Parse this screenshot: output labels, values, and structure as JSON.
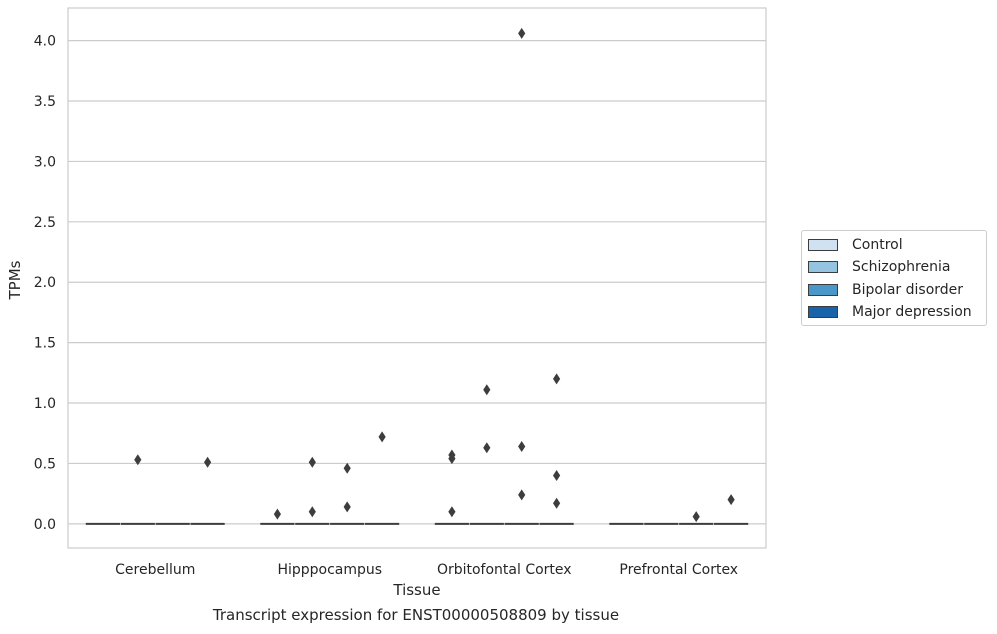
{
  "chart_data": {
    "type": "box",
    "title": "",
    "caption": "Transcript expression for ENST00000508809 by tissue",
    "xlabel": "Tissue",
    "ylabel": "TPMs",
    "ylim": [
      -0.2,
      4.27
    ],
    "yticks": [
      "0.0",
      "0.5",
      "1.0",
      "1.5",
      "2.0",
      "2.5",
      "3.0",
      "3.5",
      "4.0"
    ],
    "grid": true,
    "legend_position": "right",
    "categories": [
      "Cerebellum",
      "Hipppocampus",
      "Orbitofontal Cortex",
      "Prefrontal Cortex"
    ],
    "series": [
      {
        "name": "Control",
        "color": "#d0e1f2",
        "box_value": 0.0,
        "outliers": [
          [],
          [
            0.08
          ],
          [
            0.57,
            0.54,
            0.1
          ],
          []
        ]
      },
      {
        "name": "Schizophrenia",
        "color": "#94c4df",
        "box_value": 0.0,
        "outliers": [
          [
            0.53
          ],
          [
            0.51,
            0.1
          ],
          [
            1.11,
            0.63
          ],
          []
        ]
      },
      {
        "name": "Bipolar disorder",
        "color": "#4a98c9",
        "box_value": 0.0,
        "outliers": [
          [],
          [
            0.46,
            0.14
          ],
          [
            4.06,
            0.64,
            0.24
          ],
          [
            0.06
          ]
        ]
      },
      {
        "name": "Major depression",
        "color": "#1764ab",
        "box_value": 0.0,
        "outliers": [
          [
            0.51
          ],
          [
            0.72
          ],
          [
            1.2,
            0.4,
            0.17
          ],
          [
            0.2
          ]
        ]
      }
    ]
  }
}
